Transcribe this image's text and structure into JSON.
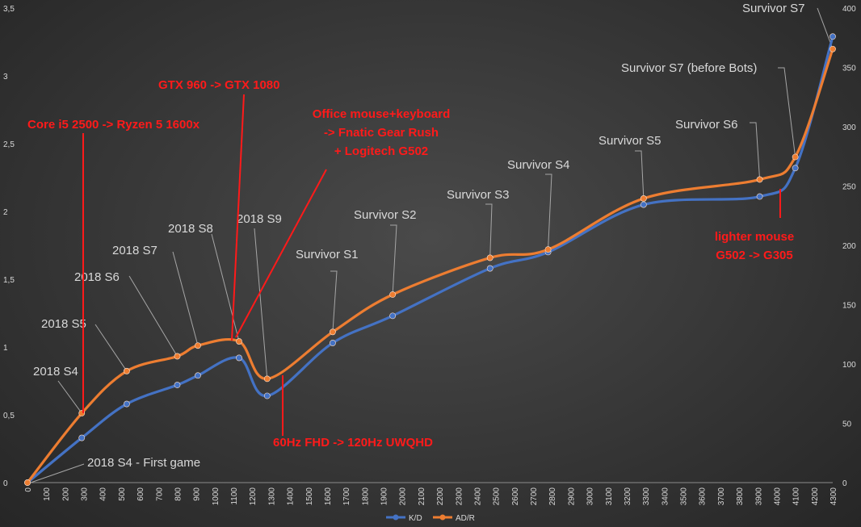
{
  "chart_data": {
    "type": "line",
    "title": "",
    "xlabel": "",
    "ylabel": "",
    "x_ticks": [
      "0",
      "100",
      "200",
      "300",
      "400",
      "500",
      "600",
      "700",
      "800",
      "900",
      "1000",
      "1100",
      "1200",
      "1300",
      "1400",
      "1500",
      "1600",
      "1700",
      "1800",
      "1900",
      "2000",
      "2100",
      "2200",
      "2300",
      "2400",
      "2500",
      "2600",
      "2700",
      "2800",
      "2900",
      "3000",
      "3100",
      "3200",
      "3300",
      "3400",
      "3500",
      "3600",
      "3700",
      "3800",
      "3900",
      "4000",
      "4100",
      "4200",
      "4300"
    ],
    "xlim": [
      0,
      4300
    ],
    "ylim_left": [
      0,
      3.5
    ],
    "y_ticks_left": [
      "0",
      "0,5",
      "1",
      "1,5",
      "2",
      "2,5",
      "3",
      "3,5"
    ],
    "ylim_right": [
      0,
      400
    ],
    "y_ticks_right": [
      "0",
      "50",
      "100",
      "150",
      "200",
      "250",
      "300",
      "350",
      "400"
    ],
    "grid": false,
    "legend_position": "bottom",
    "series": [
      {
        "name": "K/D",
        "axis": "left",
        "color": "#4472c4",
        "x": [
          0,
          290,
          530,
          800,
          910,
          1130,
          1280,
          1630,
          1950,
          2470,
          2780,
          3290,
          3910,
          4100,
          4300
        ],
        "y": [
          0,
          0.33,
          0.58,
          0.72,
          0.79,
          0.92,
          0.64,
          1.03,
          1.23,
          1.58,
          1.7,
          2.05,
          2.11,
          2.32,
          3.29
        ]
      },
      {
        "name": "AD/R",
        "axis": "right",
        "color": "#ed7d31",
        "x": [
          0,
          290,
          530,
          800,
          910,
          1130,
          1280,
          1630,
          1950,
          2470,
          2780,
          3290,
          3910,
          4100,
          4300
        ],
        "y": [
          0,
          58.5,
          94,
          106.5,
          115.5,
          119,
          87.5,
          127,
          158.5,
          189.5,
          196.5,
          239.5,
          255.5,
          274.5,
          365.5
        ]
      }
    ],
    "point_labels": [
      {
        "text": "2018 S4 - First game",
        "point": 0
      },
      {
        "text": "2018 S4",
        "point": 1
      },
      {
        "text": "2018 S5",
        "point": 2
      },
      {
        "text": "2018 S6",
        "point": 3
      },
      {
        "text": "2018 S7",
        "point": 4
      },
      {
        "text": "2018 S8",
        "point": 5
      },
      {
        "text": "2018 S9",
        "point": 6
      },
      {
        "text": "Survivor S1",
        "point": 7
      },
      {
        "text": "Survivor S2",
        "point": 8
      },
      {
        "text": "Survivor S3",
        "point": 9
      },
      {
        "text": "Survivor S4",
        "point": 10
      },
      {
        "text": "Survivor S5",
        "point": 11
      },
      {
        "text": "Survivor S6",
        "point": 12
      },
      {
        "text": "Survivor S7 (before Bots)",
        "point": 13
      },
      {
        "text": "Survivor S7",
        "point": 14
      }
    ],
    "annotations": [
      {
        "lines": [
          "Core i5 2500 -> Ryzen 5 1600x"
        ]
      },
      {
        "lines": [
          "GTX 960 -> GTX 1080"
        ]
      },
      {
        "lines": [
          "Office mouse+keyboard",
          "-> Fnatic Gear Rush",
          "+ Logitech G502"
        ]
      },
      {
        "lines": [
          "60Hz FHD -> 120Hz UWQHD"
        ]
      },
      {
        "lines": [
          "lighter mouse",
          "G502 -> G305"
        ]
      }
    ]
  }
}
